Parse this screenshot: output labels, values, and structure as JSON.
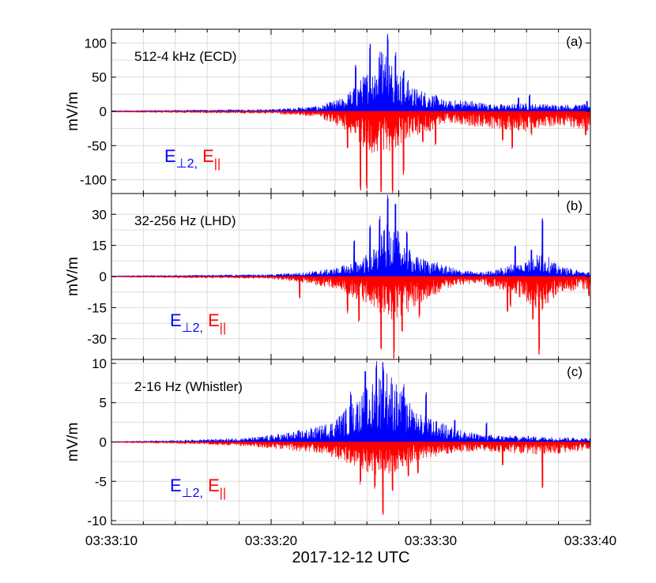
{
  "figure": {
    "xlabel": "2017-12-12 UTC",
    "x_ticks": [
      "03:33:10",
      "03:33:20",
      "03:33:30",
      "03:33:40"
    ],
    "x_range_seconds": [
      10,
      40
    ],
    "ylabel": "mV/m",
    "colors": {
      "perp": "#0000ff",
      "par": "#ff0000",
      "grid": "#dcdcdc",
      "axis": "#000000"
    }
  },
  "chart_data": [
    {
      "type": "line",
      "panel": "(a)",
      "title": "512-4 kHz (ECD)",
      "ylabel": "mV/m",
      "ylim": [
        -120,
        120
      ],
      "yticks": [
        100,
        50,
        0,
        -50,
        -100
      ],
      "ytick_labels": [
        "100",
        "50",
        "0",
        "-50",
        "-100"
      ],
      "xlim": [
        10,
        40
      ],
      "legend": {
        "perp_base": "E",
        "perp_sub": "⊥2",
        "sep": ",",
        "par_base": "E",
        "par_sub": "||"
      },
      "series": [
        {
          "name": "E⊥2",
          "color": "#0000ff",
          "sign": 1,
          "envelope_x": [
            10,
            20,
            23,
            24.5,
            25.5,
            26,
            26.5,
            27,
            27.5,
            28,
            28.5,
            29,
            30,
            31,
            32,
            34,
            36,
            38,
            40
          ],
          "envelope_y": [
            1,
            3,
            8,
            20,
            45,
            60,
            85,
            100,
            80,
            60,
            50,
            35,
            28,
            15,
            18,
            10,
            12,
            10,
            10
          ],
          "spikes": [
            [
              25.3,
              68
            ],
            [
              26.2,
              100
            ],
            [
              26.9,
              75
            ],
            [
              27.3,
              115
            ],
            [
              27.8,
              90
            ],
            [
              28.3,
              60
            ],
            [
              35.5,
              20
            ],
            [
              36.2,
              25
            ],
            [
              39.8,
              15
            ]
          ]
        },
        {
          "name": "E||",
          "color": "#ff0000",
          "sign": -1,
          "envelope_x": [
            10,
            20,
            23,
            24.5,
            25.5,
            26,
            26.5,
            27,
            27.5,
            28,
            28.5,
            29,
            30,
            31,
            32,
            34,
            36,
            38,
            40
          ],
          "envelope_y": [
            1,
            3,
            8,
            25,
            50,
            70,
            60,
            55,
            65,
            50,
            40,
            35,
            30,
            15,
            20,
            25,
            30,
            20,
            30
          ],
          "spikes": [
            [
              24.8,
              55
            ],
            [
              25.6,
              120
            ],
            [
              26.0,
              115
            ],
            [
              26.9,
              120
            ],
            [
              27.6,
              120
            ],
            [
              28.3,
              95
            ],
            [
              29.5,
              45
            ],
            [
              30.3,
              50
            ],
            [
              34.5,
              45
            ],
            [
              35.1,
              55
            ],
            [
              36.3,
              35
            ],
            [
              39.7,
              35
            ]
          ]
        }
      ]
    },
    {
      "type": "line",
      "panel": "(b)",
      "title": "32-256 Hz (LHD)",
      "ylabel": "mV/m",
      "ylim": [
        -40,
        40
      ],
      "yticks": [
        30,
        15,
        0,
        -15,
        -30
      ],
      "ytick_labels": [
        "30",
        "15",
        "0",
        "-15",
        "-30"
      ],
      "xlim": [
        10,
        40
      ],
      "legend": {
        "perp_base": "E",
        "perp_sub": "⊥2",
        "sep": ",",
        "par_base": "E",
        "par_sub": "||"
      },
      "series": [
        {
          "name": "E⊥2",
          "color": "#0000ff",
          "sign": 1,
          "envelope_x": [
            10,
            20,
            22,
            24,
            25.5,
            26.5,
            27,
            27.5,
            28,
            28.5,
            29,
            30,
            31,
            32,
            33,
            34,
            35,
            36,
            36.5,
            37,
            38,
            40
          ],
          "envelope_y": [
            0.3,
            1,
            2,
            4,
            8,
            14,
            22,
            28,
            22,
            15,
            10,
            8,
            5,
            3,
            2,
            3,
            6,
            8,
            10,
            12,
            5,
            2
          ],
          "spikes": [
            [
              25.2,
              18
            ],
            [
              26.2,
              25
            ],
            [
              26.8,
              30
            ],
            [
              27.3,
              40
            ],
            [
              27.8,
              35
            ],
            [
              28.5,
              22
            ],
            [
              35.3,
              15
            ],
            [
              36.3,
              14
            ],
            [
              37.0,
              29
            ]
          ]
        },
        {
          "name": "E||",
          "color": "#ff0000",
          "sign": -1,
          "envelope_x": [
            10,
            20,
            22,
            24,
            25.5,
            26.5,
            27,
            27.5,
            28,
            28.5,
            29,
            30,
            31,
            32,
            33,
            34,
            35,
            36,
            36.5,
            37,
            38,
            40
          ],
          "envelope_y": [
            0.3,
            1,
            3,
            6,
            12,
            16,
            18,
            22,
            20,
            18,
            15,
            10,
            6,
            4,
            3,
            6,
            8,
            12,
            16,
            18,
            8,
            6
          ],
          "spikes": [
            [
              21.8,
              11
            ],
            [
              24.8,
              18
            ],
            [
              25.5,
              22
            ],
            [
              26.9,
              38
            ],
            [
              27.7,
              40
            ],
            [
              28.2,
              28
            ],
            [
              29.3,
              20
            ],
            [
              34.8,
              18
            ],
            [
              35.0,
              15
            ],
            [
              36.4,
              22
            ],
            [
              36.8,
              38
            ],
            [
              39.9,
              10
            ]
          ]
        }
      ]
    },
    {
      "type": "line",
      "panel": "(c)",
      "title": "2-16 Hz (Whistler)",
      "ylabel": "mV/m",
      "ylim": [
        -10.5,
        10.5
      ],
      "yticks": [
        10,
        5,
        0,
        -5,
        -10
      ],
      "ytick_labels": [
        "10",
        "5",
        "0",
        "-5",
        "-10"
      ],
      "xlim": [
        10,
        40
      ],
      "legend": {
        "perp_base": "E",
        "perp_sub": "⊥2",
        "sep": ",",
        "par_base": "E",
        "par_sub": "||"
      },
      "series": [
        {
          "name": "E⊥2",
          "color": "#0000ff",
          "sign": 1,
          "envelope_x": [
            10,
            14,
            17,
            19,
            21,
            23,
            24,
            25,
            26,
            26.5,
            27,
            27.5,
            28,
            28.5,
            29,
            30,
            31,
            32,
            33,
            35,
            37,
            40
          ],
          "envelope_y": [
            0.05,
            0.2,
            0.4,
            0.6,
            1.2,
            2,
            3,
            5,
            7,
            8,
            10,
            9,
            7,
            5.5,
            4,
            3,
            2.2,
            1.5,
            1,
            0.8,
            0.7,
            0.5
          ],
          "spikes": [
            [
              25.0,
              6.5
            ],
            [
              25.9,
              9
            ],
            [
              26.6,
              10.5
            ],
            [
              27.0,
              10.5
            ],
            [
              28.3,
              7.5
            ],
            [
              29.7,
              6.5
            ],
            [
              31.5,
              3
            ],
            [
              33.5,
              2.5
            ]
          ]
        },
        {
          "name": "E||",
          "color": "#ff0000",
          "sign": -1,
          "envelope_x": [
            10,
            14,
            17,
            19,
            21,
            23,
            24,
            25,
            26,
            26.5,
            27,
            27.5,
            28,
            28.5,
            29,
            30,
            31,
            32,
            33,
            35,
            37,
            40
          ],
          "envelope_y": [
            0.05,
            0.2,
            0.4,
            0.6,
            1,
            1.5,
            2,
            3,
            4,
            4.5,
            5,
            4,
            3.5,
            3,
            2.5,
            2,
            1.5,
            1.3,
            1.1,
            1.4,
            1.6,
            1
          ],
          "spikes": [
            [
              25.6,
              5.5
            ],
            [
              26.5,
              6
            ],
            [
              27.0,
              9.7
            ],
            [
              27.6,
              6.5
            ],
            [
              28.6,
              4.5
            ],
            [
              29.2,
              4
            ],
            [
              34.5,
              3
            ],
            [
              37.0,
              6
            ],
            [
              38.0,
              1.5
            ]
          ]
        }
      ]
    }
  ]
}
